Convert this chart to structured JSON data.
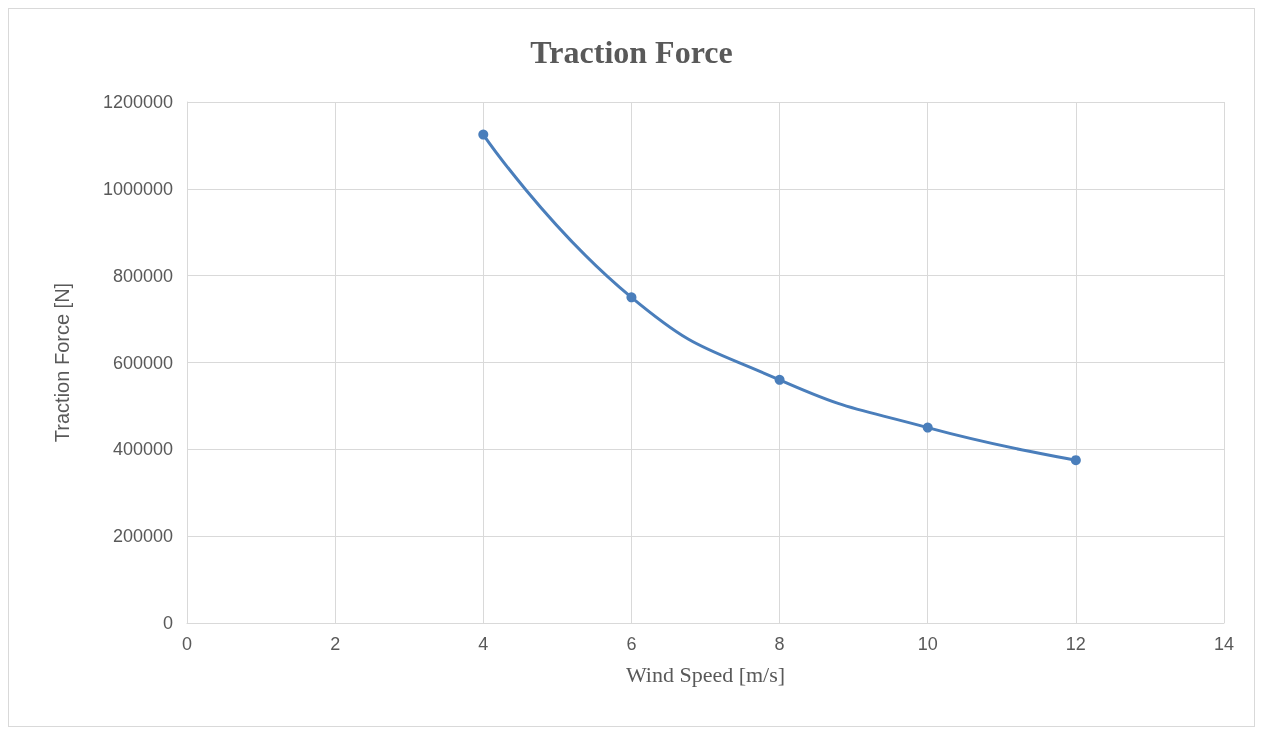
{
  "chart_data": {
    "type": "line",
    "title": "Traction Force",
    "xlabel": "Wind Speed [m/s]",
    "ylabel": "Traction Force [N]",
    "x": [
      4,
      6,
      8,
      10,
      12
    ],
    "series": [
      {
        "color": "#4a7ebb",
        "values": [
          1125000,
          750000,
          560000,
          450000,
          375000
        ]
      }
    ],
    "xlim": [
      0,
      14
    ],
    "xticks": [
      0,
      2,
      4,
      6,
      8,
      10,
      12,
      14
    ],
    "ylim": [
      0,
      1200000
    ],
    "yticks": [
      0,
      200000,
      400000,
      600000,
      800000,
      1000000,
      1200000
    ],
    "grid": true,
    "marker": "circle",
    "line_style": "solid"
  }
}
